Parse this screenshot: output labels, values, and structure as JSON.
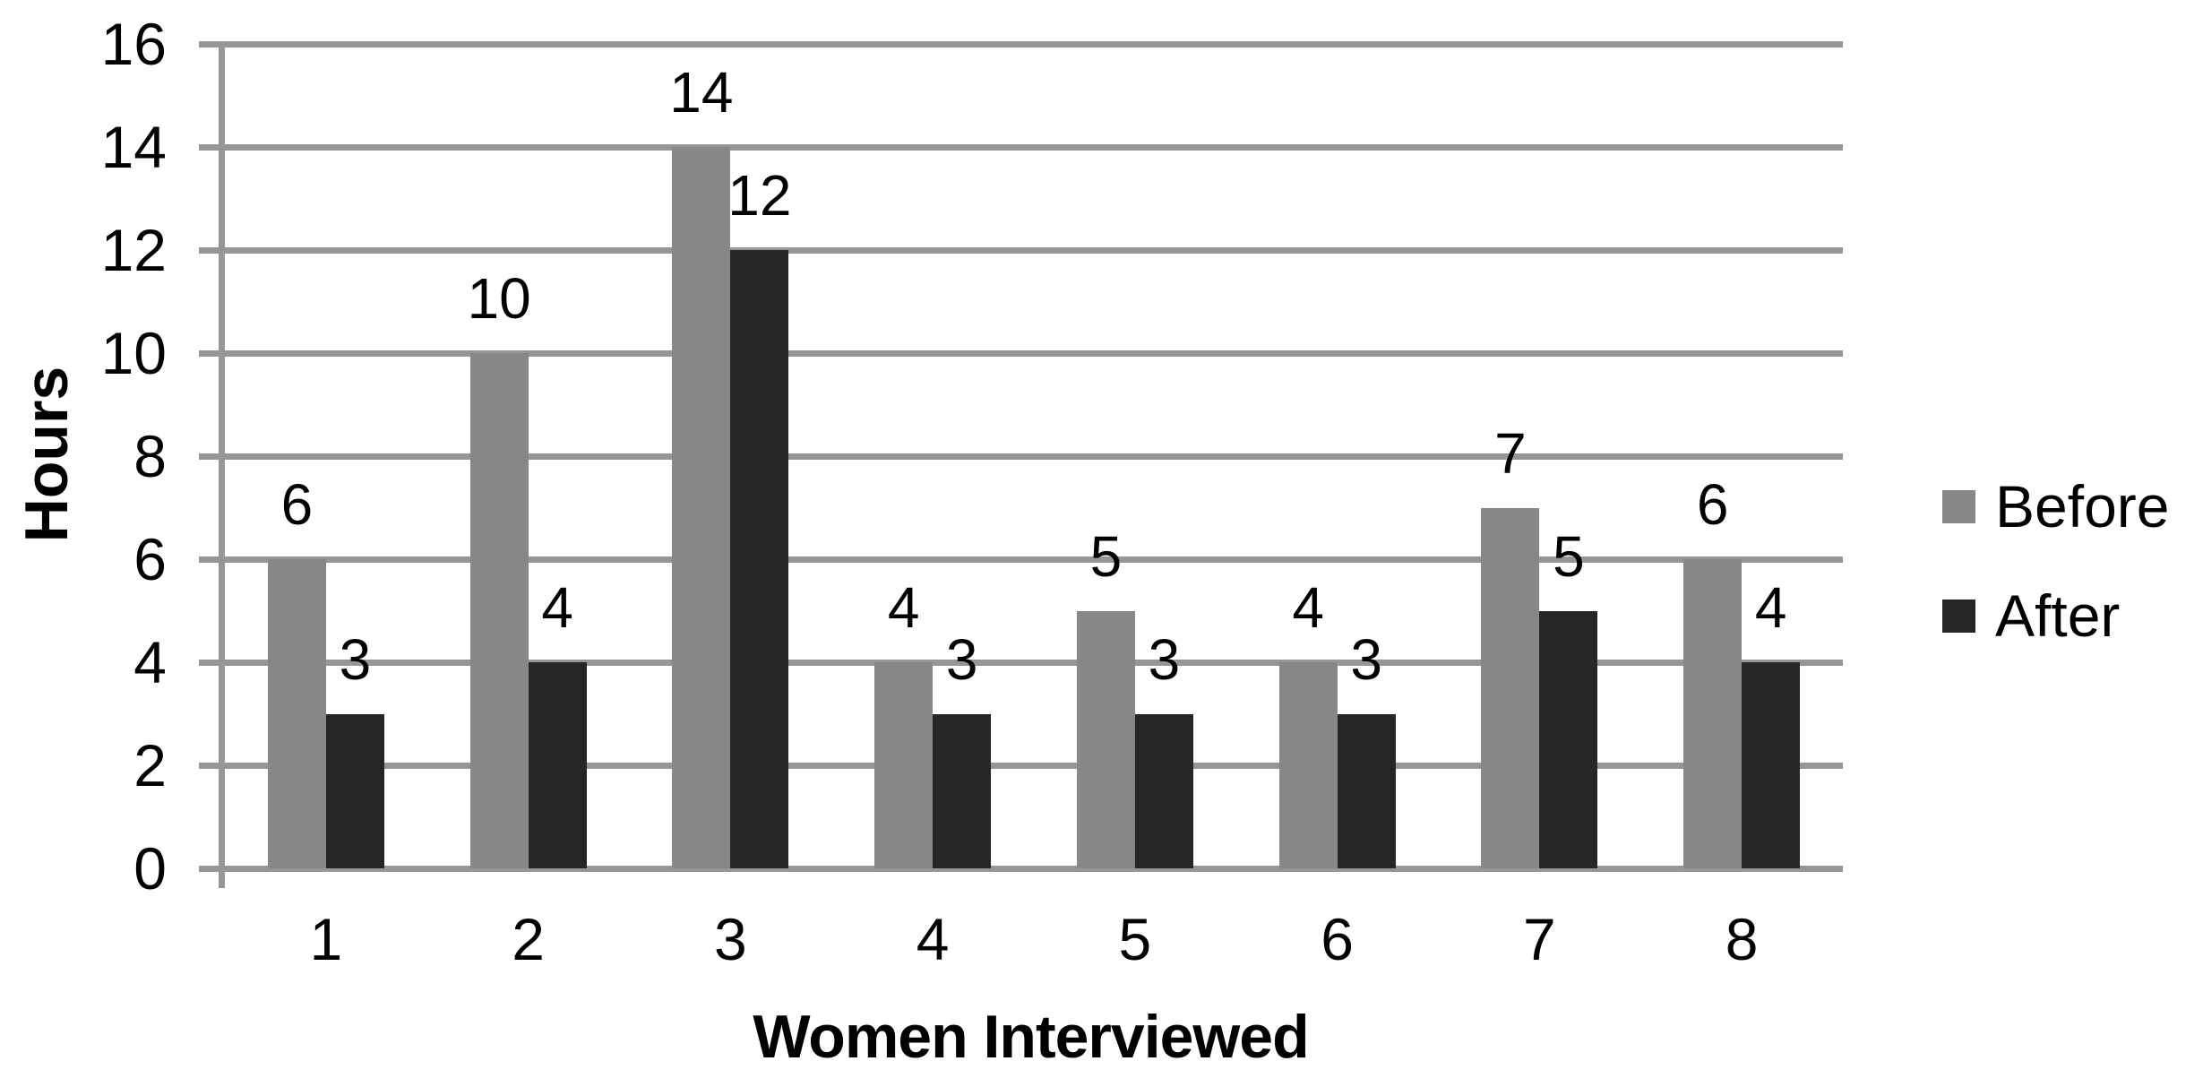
{
  "chart_data": {
    "type": "bar",
    "title": "",
    "xlabel": "Women Interviewed",
    "ylabel": "Hours",
    "categories": [
      "1",
      "2",
      "3",
      "4",
      "5",
      "6",
      "7",
      "8"
    ],
    "series": [
      {
        "name": "Before",
        "color": "#878787",
        "values": [
          6,
          10,
          14,
          4,
          5,
          4,
          7,
          6
        ]
      },
      {
        "name": "After",
        "color": "#262626",
        "values": [
          3,
          4,
          12,
          3,
          3,
          3,
          5,
          4
        ]
      }
    ],
    "ylim": [
      0,
      16
    ],
    "ytick_step": 2,
    "ytick_labels": [
      "16",
      "14",
      "12",
      "10",
      "8",
      "6",
      "4",
      "2",
      "0"
    ],
    "grid": "horizontal",
    "gridline_color": "#969696",
    "axis_color": "#969696",
    "legend_position": "right",
    "show_value_labels": true,
    "background_color": "#ffffff",
    "text_color": "#000000"
  }
}
